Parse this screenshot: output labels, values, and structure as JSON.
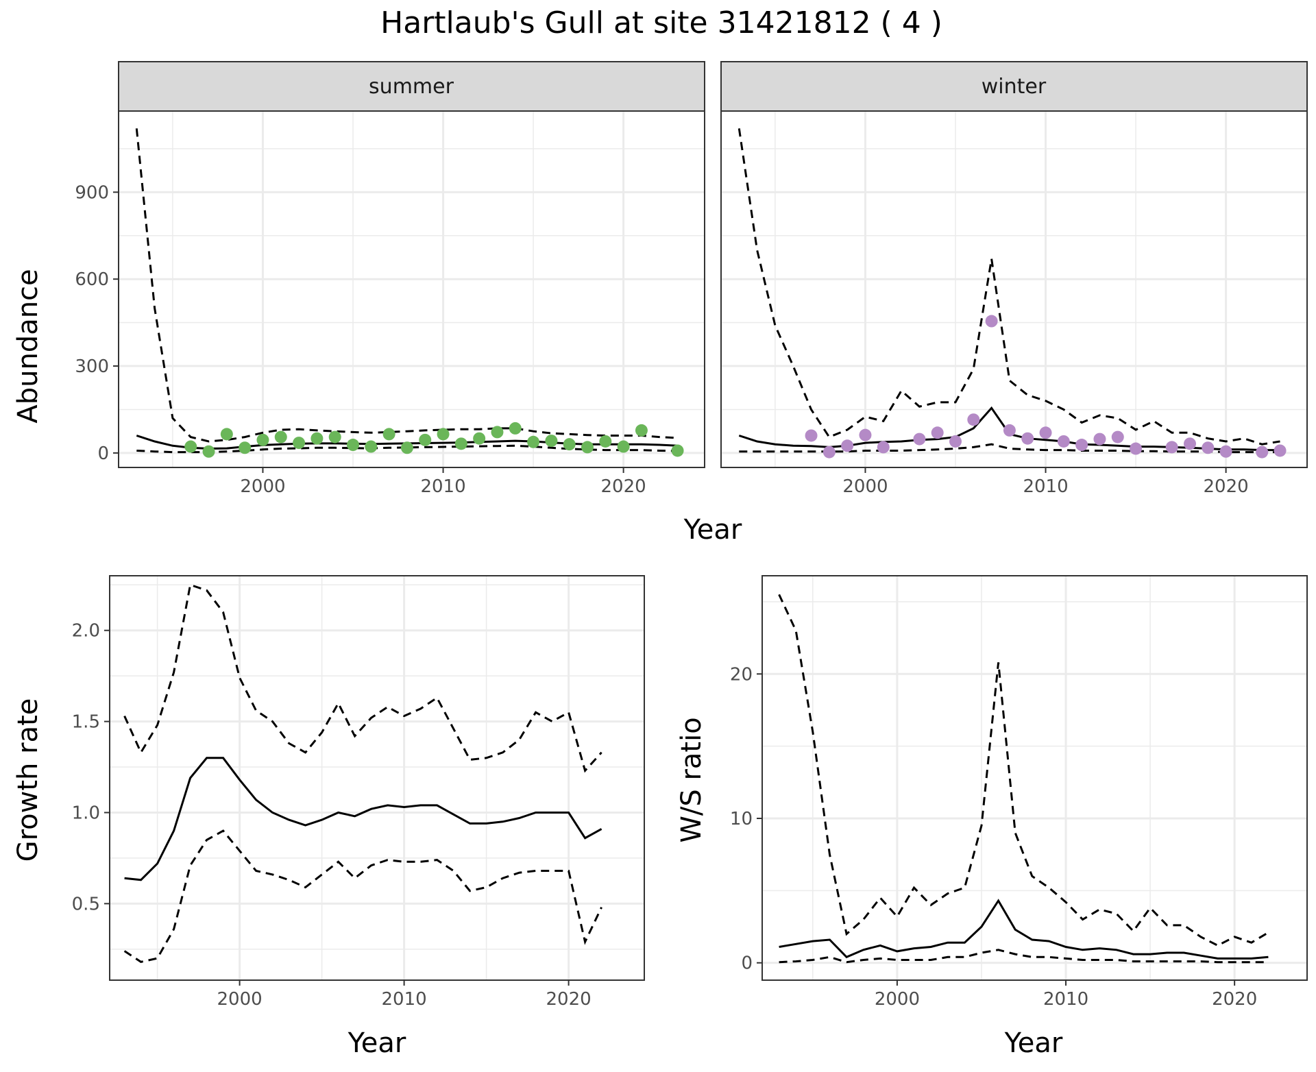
{
  "title": "Hartlaub's Gull at site 31421812 ( 4 )",
  "panels": {
    "abundance": {
      "ylabel": "Abundance",
      "xlabel": "Year",
      "summer_label": "summer",
      "winter_label": "winter"
    },
    "growth": {
      "ylabel": "Growth rate",
      "xlabel": "Year"
    },
    "ratio": {
      "ylabel": "W/S ratio",
      "xlabel": "Year"
    }
  },
  "colors": {
    "summer_points": "#6ab659",
    "winter_points": "#b48ac6",
    "lines": "#000000",
    "strip_fill": "#d9d9d9",
    "grid": "#ebebeb"
  },
  "chart_data": [
    {
      "type": "line",
      "facet": "summer",
      "xlabel": "Year",
      "ylabel": "Abundance",
      "xlim": [
        1992,
        2024.5
      ],
      "ylim": [
        -50,
        1180
      ],
      "xticks": [
        2000,
        2010,
        2020
      ],
      "yticks": [
        0,
        300,
        600,
        900
      ],
      "lines": {
        "x": [
          1993,
          1994,
          1995,
          1996,
          1997,
          1998,
          1999,
          2000,
          2001,
          2002,
          2003,
          2004,
          2005,
          2006,
          2007,
          2008,
          2009,
          2010,
          2011,
          2012,
          2013,
          2014,
          2015,
          2016,
          2017,
          2018,
          2019,
          2020,
          2021,
          2022,
          2023
        ],
        "mean": [
          60,
          40,
          25,
          18,
          15,
          16,
          22,
          27,
          30,
          32,
          33,
          33,
          32,
          31,
          32,
          33,
          34,
          35,
          36,
          38,
          40,
          42,
          40,
          36,
          32,
          30,
          30,
          30,
          30,
          28,
          25
        ],
        "upper": [
          1120,
          500,
          120,
          55,
          40,
          45,
          55,
          70,
          80,
          82,
          78,
          75,
          72,
          70,
          72,
          75,
          78,
          80,
          82,
          82,
          85,
          85,
          75,
          68,
          65,
          62,
          60,
          60,
          60,
          55,
          52
        ],
        "lower": [
          8,
          5,
          3,
          3,
          3,
          5,
          8,
          12,
          15,
          16,
          18,
          18,
          17,
          16,
          18,
          19,
          20,
          21,
          22,
          23,
          24,
          25,
          22,
          18,
          14,
          12,
          10,
          10,
          10,
          8,
          7
        ]
      },
      "points": {
        "x": [
          1996,
          1997,
          1998,
          1999,
          2000,
          2001,
          2002,
          2003,
          2004,
          2005,
          2006,
          2007,
          2008,
          2009,
          2010,
          2011,
          2012,
          2013,
          2014,
          2015,
          2016,
          2017,
          2018,
          2019,
          2020,
          2021,
          2023
        ],
        "y": [
          22,
          5,
          65,
          18,
          45,
          55,
          35,
          50,
          55,
          28,
          22,
          65,
          18,
          45,
          65,
          32,
          50,
          72,
          85,
          38,
          42,
          30,
          20,
          40,
          22,
          78,
          8
        ]
      }
    },
    {
      "type": "line",
      "facet": "winter",
      "xlabel": "Year",
      "ylabel": "Abundance",
      "xlim": [
        1992,
        2024.5
      ],
      "ylim": [
        -50,
        1180
      ],
      "xticks": [
        2000,
        2010,
        2020
      ],
      "yticks": [
        0,
        300,
        600,
        900
      ],
      "lines": {
        "x": [
          1993,
          1994,
          1995,
          1996,
          1997,
          1998,
          1999,
          2000,
          2001,
          2002,
          2003,
          2004,
          2005,
          2006,
          2007,
          2008,
          2009,
          2010,
          2011,
          2012,
          2013,
          2014,
          2015,
          2016,
          2017,
          2018,
          2019,
          2020,
          2021,
          2022,
          2023
        ],
        "mean": [
          60,
          40,
          30,
          25,
          24,
          20,
          25,
          35,
          38,
          40,
          45,
          48,
          55,
          85,
          155,
          65,
          50,
          45,
          40,
          30,
          28,
          25,
          22,
          22,
          20,
          18,
          15,
          12,
          12,
          10,
          10
        ],
        "upper": [
          1120,
          700,
          440,
          300,
          150,
          55,
          80,
          125,
          110,
          215,
          160,
          175,
          175,
          290,
          670,
          250,
          200,
          180,
          150,
          105,
          130,
          120,
          80,
          110,
          70,
          70,
          50,
          40,
          50,
          30,
          40
        ],
        "lower": [
          5,
          5,
          5,
          5,
          5,
          5,
          5,
          8,
          8,
          8,
          10,
          12,
          15,
          20,
          30,
          15,
          12,
          10,
          10,
          8,
          8,
          8,
          6,
          6,
          5,
          5,
          5,
          3,
          3,
          3,
          3
        ]
      },
      "points": {
        "x": [
          1997,
          1998,
          1999,
          2000,
          2001,
          2003,
          2004,
          2005,
          2006,
          2007,
          2008,
          2009,
          2010,
          2011,
          2012,
          2013,
          2014,
          2015,
          2017,
          2018,
          2019,
          2020,
          2022,
          2023
        ],
        "y": [
          60,
          3,
          25,
          62,
          20,
          48,
          70,
          40,
          115,
          455,
          78,
          50,
          70,
          40,
          28,
          48,
          55,
          15,
          20,
          32,
          18,
          5,
          3,
          8
        ]
      }
    },
    {
      "type": "line",
      "xlabel": "Year",
      "ylabel": "Growth rate",
      "xlim": [
        1992.1,
        2024.6
      ],
      "ylim": [
        0.08,
        2.3
      ],
      "xticks": [
        2000,
        2010,
        2020
      ],
      "yticks": [
        0.5,
        1.0,
        1.5,
        2.0
      ],
      "ytick_labels": [
        "0.5",
        "1.0",
        "1.5",
        "2.0"
      ],
      "lines": {
        "x": [
          1993,
          1994,
          1995,
          1996,
          1997,
          1998,
          1999,
          2000,
          2001,
          2002,
          2003,
          2004,
          2005,
          2006,
          2007,
          2008,
          2009,
          2010,
          2011,
          2012,
          2013,
          2014,
          2015,
          2016,
          2017,
          2018,
          2019,
          2020,
          2021,
          2022
        ],
        "mean": [
          0.64,
          0.63,
          0.72,
          0.9,
          1.19,
          1.3,
          1.3,
          1.18,
          1.07,
          1.0,
          0.96,
          0.93,
          0.96,
          1.0,
          0.98,
          1.02,
          1.04,
          1.03,
          1.04,
          1.04,
          0.99,
          0.94,
          0.94,
          0.95,
          0.97,
          1.0,
          1.0,
          1.0,
          0.86,
          0.91
        ],
        "upper": [
          1.53,
          1.33,
          1.48,
          1.77,
          2.25,
          2.22,
          2.1,
          1.74,
          1.56,
          1.5,
          1.38,
          1.33,
          1.44,
          1.6,
          1.42,
          1.52,
          1.58,
          1.53,
          1.57,
          1.63,
          1.46,
          1.29,
          1.3,
          1.33,
          1.4,
          1.55,
          1.5,
          1.55,
          1.23,
          1.33
        ],
        "lower": [
          0.24,
          0.18,
          0.2,
          0.36,
          0.71,
          0.85,
          0.9,
          0.79,
          0.68,
          0.66,
          0.63,
          0.59,
          0.66,
          0.73,
          0.64,
          0.71,
          0.74,
          0.73,
          0.73,
          0.74,
          0.68,
          0.57,
          0.59,
          0.64,
          0.67,
          0.68,
          0.68,
          0.68,
          0.29,
          0.48
        ]
      }
    },
    {
      "type": "line",
      "xlabel": "Year",
      "ylabel": "W/S ratio",
      "xlim": [
        1992,
        2024.3
      ],
      "ylim": [
        -1.2,
        26.8
      ],
      "xticks": [
        2000,
        2010,
        2020
      ],
      "yticks": [
        0,
        10,
        20
      ],
      "lines": {
        "x": [
          1993,
          1994,
          1995,
          1996,
          1997,
          1998,
          1999,
          2000,
          2001,
          2002,
          2003,
          2004,
          2005,
          2006,
          2007,
          2008,
          2009,
          2010,
          2011,
          2012,
          2013,
          2014,
          2015,
          2016,
          2017,
          2018,
          2019,
          2020,
          2021,
          2022
        ],
        "mean": [
          1.1,
          1.3,
          1.5,
          1.6,
          0.4,
          0.9,
          1.2,
          0.8,
          1.0,
          1.1,
          1.4,
          1.4,
          2.5,
          4.3,
          2.3,
          1.6,
          1.5,
          1.1,
          0.9,
          1.0,
          0.9,
          0.6,
          0.6,
          0.7,
          0.7,
          0.5,
          0.3,
          0.3,
          0.3,
          0.4
        ],
        "upper": [
          25.5,
          23,
          16,
          7.5,
          2,
          3,
          4.5,
          3.2,
          5.2,
          4,
          4.8,
          5.2,
          9.5,
          20.8,
          9,
          6,
          5.2,
          4.2,
          3,
          3.7,
          3.4,
          2.2,
          3.8,
          2.6,
          2.6,
          1.8,
          1.2,
          1.8,
          1.4,
          2.1
        ],
        "lower": [
          0.05,
          0.1,
          0.2,
          0.4,
          0.05,
          0.2,
          0.3,
          0.2,
          0.2,
          0.2,
          0.4,
          0.4,
          0.7,
          0.9,
          0.6,
          0.4,
          0.4,
          0.3,
          0.2,
          0.2,
          0.2,
          0.1,
          0.1,
          0.1,
          0.1,
          0.1,
          0.05,
          0.05,
          0.05,
          0.05
        ]
      }
    }
  ]
}
